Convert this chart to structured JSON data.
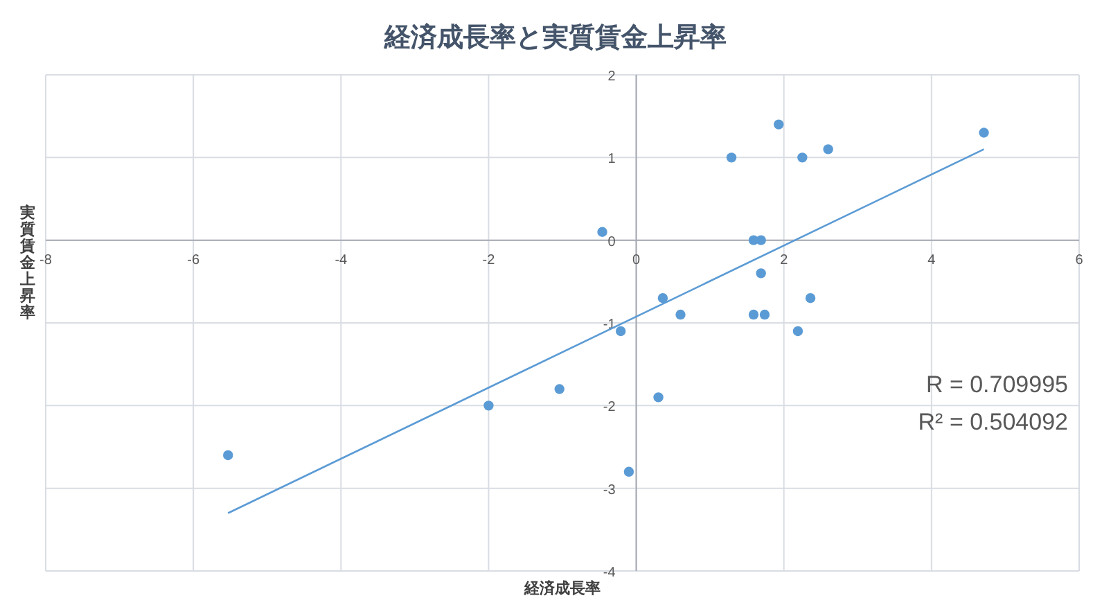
{
  "chart_data": {
    "type": "scatter",
    "title": "経済成長率と実質賃金上昇率",
    "xlabel": "経済成長率",
    "ylabel": "実質賃金上昇率",
    "xlim": [
      -8,
      6
    ],
    "ylim": [
      -4,
      2
    ],
    "xticks": [
      -8,
      -6,
      -4,
      -2,
      0,
      2,
      4,
      6
    ],
    "yticks": [
      -4,
      -3,
      -2,
      -1,
      0,
      1,
      2
    ],
    "grid": true,
    "series": [
      {
        "marker": "circle",
        "color": "#5b9bd5",
        "x": [
          -5.53,
          -2.0,
          -1.04,
          -0.46,
          -0.21,
          -0.1,
          0.3,
          0.36,
          0.6,
          1.29,
          1.59,
          1.59,
          1.69,
          1.69,
          1.74,
          1.93,
          2.19,
          2.25,
          2.36,
          2.6,
          4.71
        ],
        "values": [
          -2.6,
          -2.0,
          -1.8,
          0.1,
          -1.1,
          -2.8,
          -1.9,
          -0.7,
          -0.9,
          1.0,
          0,
          -0.9,
          0,
          -0.4,
          -0.9,
          1.4,
          -1.1,
          1.0,
          -0.7,
          1.1,
          1.3
        ]
      },
      {
        "type": "line",
        "color": "#5b9bd5",
        "x": [
          -5.53,
          4.71
        ],
        "values": [
          -3.3,
          1.1
        ]
      }
    ],
    "annotations": [
      "R = 0.709995",
      "R² = 0.504092"
    ]
  }
}
